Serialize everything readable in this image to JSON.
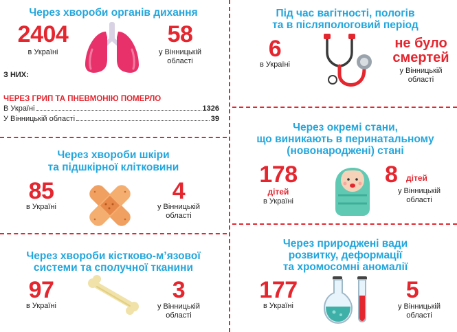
{
  "colors": {
    "accent_red": "#e4262f",
    "accent_cyan": "#23a6dc"
  },
  "resp": {
    "title": "Через хвороби органів дихання",
    "ua_value": "2404",
    "ua_label": "в Україні",
    "vn_value": "58",
    "vn_label_1": "у Вінницькій",
    "vn_label_2": "області",
    "of_them": "З НИХ:",
    "flu_title": "ЧЕРЕЗ ГРИП ТА ПНЕВМОНІЮ ПОМЕРЛО",
    "flu_rows": [
      {
        "label": "В Україні",
        "value": "1326"
      },
      {
        "label": "У Вінницькій області",
        "value": "39"
      }
    ],
    "icon": "lungs-icon"
  },
  "preg": {
    "title_1": "Під час вагітності, пологів",
    "title_2": "та в післяпологовий період",
    "ua_value": "6",
    "ua_label": "в Україні",
    "vn_value_1": "не було",
    "vn_value_2": "смертей",
    "vn_label_1": "у Вінницькій",
    "vn_label_2": "області",
    "icon": "stethoscope-icon"
  },
  "skin": {
    "title_1": "Через хвороби шкіри",
    "title_2": "та підшкірної клітковини",
    "ua_value": "85",
    "ua_label": "в Україні",
    "vn_value": "4",
    "vn_label_1": "у Вінницькій",
    "vn_label_2": "області",
    "icon": "bandage-icon"
  },
  "peri": {
    "title_1": "Через окремі стани,",
    "title_2": "що виникають в перинатальному",
    "title_3": "(новонароджені) стані",
    "ua_value": "178",
    "ua_unit": "дітей",
    "ua_label": "в Україні",
    "vn_value": "8",
    "vn_unit": "дітей",
    "vn_label_1": "у Вінницькій",
    "vn_label_2": "області",
    "icon": "baby-icon"
  },
  "musc": {
    "title_1": "Через хвороби кістково-м’язової",
    "title_2": "системи та сполучної тканини",
    "ua_value": "97",
    "ua_label": "в Україні",
    "vn_value": "3",
    "vn_label_1": "у Вінницькій",
    "vn_label_2": "області",
    "icon": "bone-icon"
  },
  "cong": {
    "title_1": "Через природжені вади",
    "title_2": "розвитку, деформації",
    "title_3": "та хромосомні аномалії",
    "ua_value": "177",
    "ua_label": "в Україні",
    "vn_value": "5",
    "vn_label_1": "у Вінницькій",
    "vn_label_2": "області",
    "icon": "lab-flask-icon"
  }
}
